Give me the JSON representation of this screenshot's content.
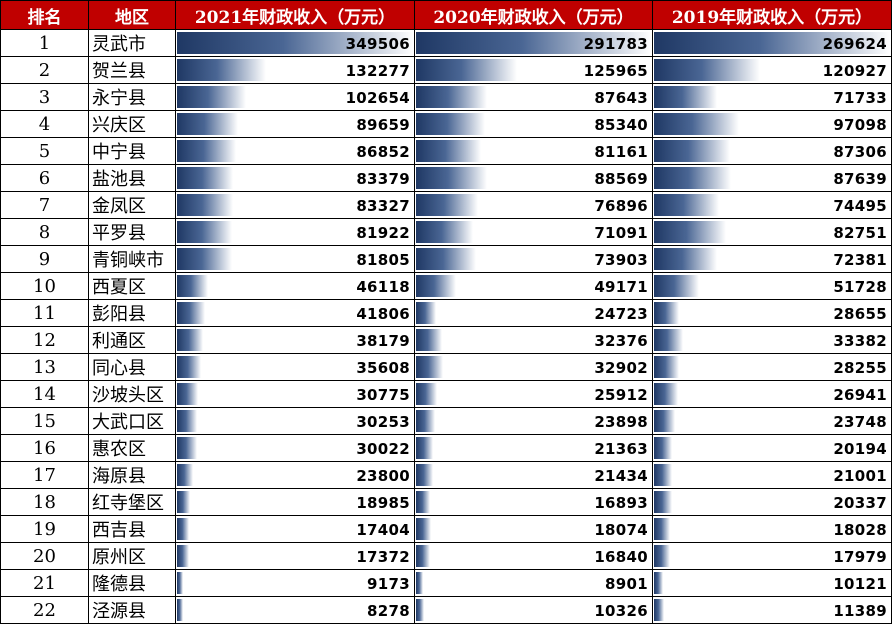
{
  "headers": [
    "排名",
    "地区",
    "2021年财政收入（万元）",
    "2020年财政收入（万元）",
    "2019年财政收入（万元）"
  ],
  "rows": [
    {
      "rank": "1",
      "region": "灵武市",
      "v2021": 349506,
      "v2020": 291783,
      "v2019": 269624
    },
    {
      "rank": "2",
      "region": "贺兰县",
      "v2021": 132277,
      "v2020": 125965,
      "v2019": 120927
    },
    {
      "rank": "3",
      "region": "永宁县",
      "v2021": 102654,
      "v2020": 87643,
      "v2019": 71733
    },
    {
      "rank": "4",
      "region": "兴庆区",
      "v2021": 89659,
      "v2020": 85340,
      "v2019": 97098
    },
    {
      "rank": "5",
      "region": "中宁县",
      "v2021": 86852,
      "v2020": 81161,
      "v2019": 87306
    },
    {
      "rank": "6",
      "region": "盐池县",
      "v2021": 83379,
      "v2020": 88569,
      "v2019": 87639
    },
    {
      "rank": "7",
      "region": "金凤区",
      "v2021": 83327,
      "v2020": 76896,
      "v2019": 74495
    },
    {
      "rank": "8",
      "region": "平罗县",
      "v2021": 81922,
      "v2020": 71091,
      "v2019": 82751
    },
    {
      "rank": "9",
      "region": "青铜峡市",
      "v2021": 81805,
      "v2020": 73903,
      "v2019": 72381
    },
    {
      "rank": "10",
      "region": "西夏区",
      "v2021": 46118,
      "v2020": 49171,
      "v2019": 51728
    },
    {
      "rank": "11",
      "region": "彭阳县",
      "v2021": 41806,
      "v2020": 24723,
      "v2019": 28655
    },
    {
      "rank": "12",
      "region": "利通区",
      "v2021": 38179,
      "v2020": 32376,
      "v2019": 33382
    },
    {
      "rank": "13",
      "region": "同心县",
      "v2021": 35608,
      "v2020": 32902,
      "v2019": 28255
    },
    {
      "rank": "14",
      "region": "沙坡头区",
      "v2021": 30775,
      "v2020": 25912,
      "v2019": 26941
    },
    {
      "rank": "15",
      "region": "大武口区",
      "v2021": 30253,
      "v2020": 23898,
      "v2019": 23748
    },
    {
      "rank": "16",
      "region": "惠农区",
      "v2021": 30022,
      "v2020": 21363,
      "v2019": 20194
    },
    {
      "rank": "17",
      "region": "海原县",
      "v2021": 23800,
      "v2020": 21434,
      "v2019": 21001
    },
    {
      "rank": "18",
      "region": "红寺堡区",
      "v2021": 18985,
      "v2020": 16893,
      "v2019": 20337
    },
    {
      "rank": "19",
      "region": "西吉县",
      "v2021": 17404,
      "v2020": 18074,
      "v2019": 18028
    },
    {
      "rank": "20",
      "region": "原州区",
      "v2021": 17372,
      "v2020": 16840,
      "v2019": 17979
    },
    {
      "rank": "21",
      "region": "隆德县",
      "v2021": 9173,
      "v2020": 8901,
      "v2019": 10121
    },
    {
      "rank": "22",
      "region": "泾源县",
      "v2021": 8278,
      "v2020": 10326,
      "v2019": 11389
    }
  ],
  "colors": {
    "header_bg": "#c00000",
    "header_text": "#ffffff",
    "bar_dark": "#1f3864"
  }
}
